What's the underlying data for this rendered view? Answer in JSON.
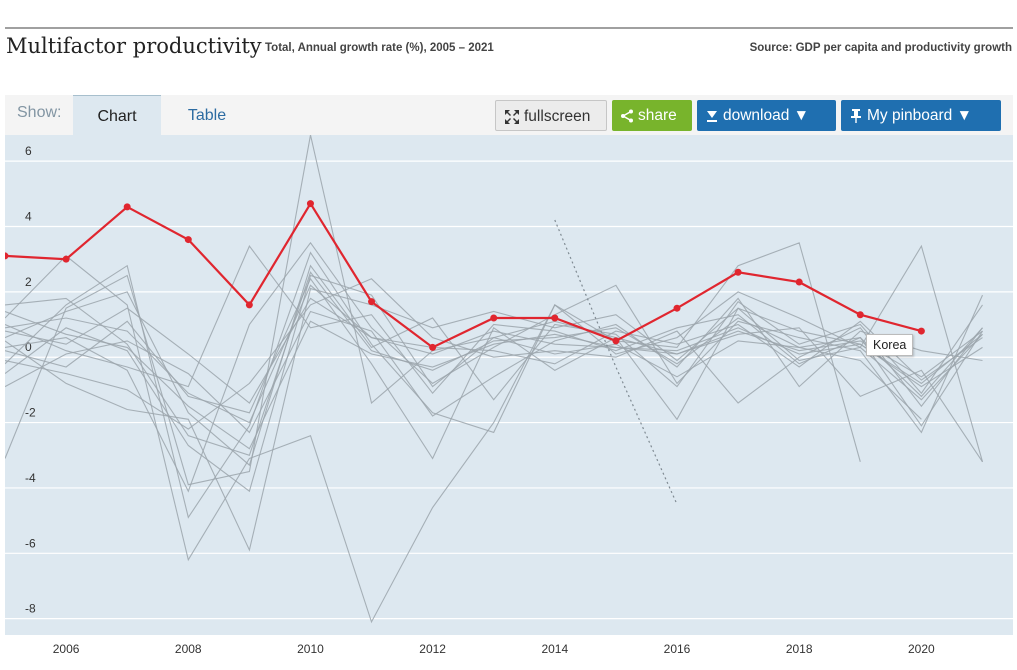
{
  "header": {
    "title": "Multifactor productivity",
    "subtitle": "Total, Annual growth rate (%), 2005 – 2021",
    "source": "Source: GDP per capita and productivity growth"
  },
  "toolbar": {
    "show_label": "Show:",
    "tab_chart": "Chart",
    "tab_table": "Table",
    "fullscreen": "fullscreen",
    "share": "share",
    "download": "download ▼",
    "pinboard": "My pinboard ▼"
  },
  "tooltip": {
    "label": "Korea"
  },
  "colors": {
    "highlight": "#e0262f",
    "background": "#dde8f0",
    "grey": "#9ba5ac",
    "accent": "#1f6fb0",
    "share": "#78b42c"
  },
  "chart_data": {
    "type": "line",
    "title": "Multifactor productivity",
    "xlabel": "",
    "ylabel": "",
    "xlim": [
      2005,
      2021.5
    ],
    "ylim": [
      -8.5,
      6.8
    ],
    "yticks": [
      -8,
      -6,
      -4,
      -2,
      0,
      2,
      4,
      6
    ],
    "xticks": [
      2006,
      2008,
      2010,
      2012,
      2014,
      2016,
      2018,
      2020
    ],
    "highlight": {
      "name": "Korea",
      "x": [
        2005,
        2006,
        2007,
        2008,
        2009,
        2010,
        2011,
        2012,
        2013,
        2014,
        2015,
        2016,
        2017,
        2018,
        2019,
        2020
      ],
      "values": [
        3.1,
        3.0,
        4.6,
        3.6,
        1.6,
        4.7,
        1.7,
        0.3,
        1.2,
        1.2,
        0.5,
        1.5,
        2.6,
        2.3,
        1.3,
        0.8
      ]
    },
    "dotted_series": {
      "x": [
        2014,
        2015,
        2016
      ],
      "values": [
        4.2,
        -0.3,
        -4.5
      ]
    },
    "series": [
      {
        "x0": 2005,
        "values": [
          1.6,
          1.8,
          0.4,
          -2.4,
          -3.0,
          2.6,
          0.2,
          -0.4,
          0.5,
          0.6,
          0.9,
          -0.2,
          1.2,
          0.3,
          0.6,
          -1.2,
          0.9
        ]
      },
      {
        "x0": 2005,
        "values": [
          0.9,
          1.2,
          0.8,
          -1.1,
          -2.0,
          2.2,
          0.6,
          0.1,
          0.8,
          0.4,
          0.3,
          0.2,
          0.9,
          0.1,
          0.4,
          -0.8,
          0.7
        ]
      },
      {
        "x0": 2005,
        "values": [
          -3.1,
          1.5,
          2.5,
          -3.9,
          -3.5,
          6.8,
          -1.4,
          0.2,
          0.6,
          1.1,
          0.6,
          -1.9,
          1.5,
          -0.1,
          0.3,
          3.4,
          -3.2
        ]
      },
      {
        "x0": 2005,
        "values": [
          0.3,
          0.6,
          -0.4,
          -4.1,
          1.0,
          3.5,
          0.9,
          -0.8,
          0.3,
          1.3,
          2.2,
          -0.8,
          1.1,
          0.6,
          0.2,
          -2.3,
          1.9
        ]
      },
      {
        "x0": 2005,
        "values": [
          1.2,
          3.1,
          1.6,
          -6.2,
          -3.1,
          -2.4,
          -8.1,
          -4.6,
          -2.0,
          1.6,
          0.5,
          0.3,
          2.8,
          3.5,
          -3.2,
          null,
          null
        ]
      },
      {
        "x0": 2005,
        "values": [
          0.5,
          -0.8,
          -1.6,
          -1.9,
          -5.9,
          2.1,
          1.6,
          0.9,
          1.4,
          0.9,
          1.3,
          -0.1,
          1.5,
          0.8,
          0.4,
          -0.9,
          0.3
        ]
      },
      {
        "x0": 2005,
        "values": [
          1.4,
          0.7,
          0.3,
          -1.5,
          -2.8,
          1.1,
          0.1,
          -0.3,
          0.4,
          0.7,
          0.3,
          0.1,
          0.8,
          0.2,
          0.5,
          -0.6,
          0.8
        ]
      },
      {
        "x0": 2005,
        "values": [
          -0.2,
          1.6,
          2.8,
          -4.9,
          -2.1,
          3.2,
          0.4,
          -1.7,
          -2.3,
          1.6,
          0.1,
          0.6,
          2.0,
          1.2,
          0.3,
          -1.3,
          0.7
        ]
      },
      {
        "x0": 2005,
        "values": [
          0.8,
          0.4,
          1.5,
          0.1,
          -1.4,
          1.8,
          0.6,
          0.3,
          0.2,
          -0.2,
          0.8,
          0.4,
          1.0,
          -0.3,
          1.1,
          -0.7,
          0.6
        ]
      },
      {
        "x0": 2005,
        "values": [
          -0.5,
          0.9,
          0.2,
          -2.7,
          -4.1,
          2.5,
          1.9,
          -0.9,
          0.6,
          0.1,
          0.4,
          -0.6,
          0.5,
          0.3,
          -0.1,
          -1.9,
          null
        ]
      },
      {
        "x0": 2005,
        "values": [
          1.0,
          0.2,
          -0.3,
          -0.9,
          3.4,
          0.9,
          1.3,
          -1.1,
          1.0,
          0.8,
          0.2,
          0.9,
          1.3,
          -0.2,
          0.6,
          -2.1,
          0.8
        ]
      },
      {
        "x0": 2005,
        "values": [
          0.2,
          -0.3,
          1.1,
          -1.2,
          -1.7,
          2.4,
          -0.2,
          -3.1,
          0.9,
          -0.4,
          0.6,
          0.1,
          0.7,
          0.9,
          -1.2,
          -0.4,
          -3.2
        ]
      },
      {
        "x0": 2005,
        "values": [
          -0.9,
          0.1,
          0.5,
          -0.5,
          -2.3,
          1.4,
          0.8,
          -1.8,
          -0.6,
          0.5,
          1.0,
          -0.3,
          1.8,
          -0.9,
          0.8,
          0.2,
          -0.1
        ]
      },
      {
        "x0": 2005,
        "values": [
          0.6,
          1.4,
          2.0,
          -1.7,
          -3.3,
          2.8,
          0.3,
          1.2,
          -1.3,
          1.0,
          0.7,
          -0.9,
          1.7,
          0.4,
          1.0,
          -1.1,
          1.6
        ]
      },
      {
        "x0": 2005,
        "values": [
          -0.1,
          -0.5,
          -1.0,
          -2.2,
          -0.8,
          1.6,
          2.4,
          0.6,
          0.0,
          0.2,
          0.0,
          0.8,
          -1.4,
          0.0,
          0.9,
          -1.5,
          0.9
        ]
      }
    ]
  }
}
